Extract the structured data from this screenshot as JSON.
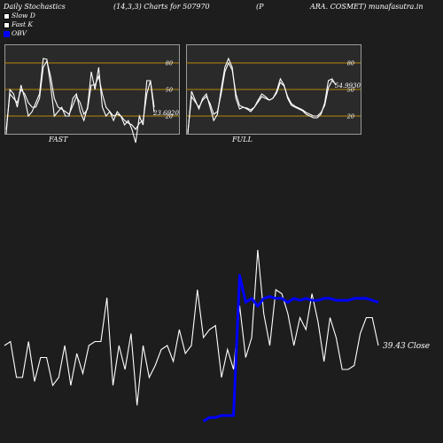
{
  "header": {
    "title": "Daily Stochastics",
    "params": "(14,3,3) Charts for 507970",
    "company_left": "(P",
    "company_right": "ARA. COSMET) munafasutra.in"
  },
  "legend": [
    {
      "label": "Slow  D",
      "color": "#ffffff",
      "border": "#000000"
    },
    {
      "label": "Fast K",
      "color": "#ffffff",
      "border": "#000000"
    },
    {
      "label": "OBV",
      "color": "#0000ff",
      "border": "#0000ff"
    }
  ],
  "colors": {
    "background": "#1d1d1d",
    "panel": "#2a2a2a",
    "ref_line": "#b8860b",
    "obv": "#0000ff",
    "price": "#ffffff"
  },
  "chart_data": [
    {
      "type": "line",
      "name": "stochastics-fast",
      "panel_label": "FAST",
      "ylim": [
        0,
        100
      ],
      "yticks": [
        80,
        50,
        20
      ],
      "ref_lines": [
        80,
        50,
        20
      ],
      "last_value_label": "23.6920",
      "series": [
        {
          "name": "Fast K",
          "values": [
            0,
            50,
            45,
            30,
            55,
            40,
            20,
            25,
            35,
            45,
            85,
            84,
            55,
            20,
            25,
            30,
            20,
            20,
            40,
            45,
            25,
            15,
            30,
            70,
            50,
            75,
            30,
            20,
            25,
            15,
            25,
            20,
            10,
            15,
            5,
            -10,
            20,
            10,
            60,
            60,
            24
          ]
        },
        {
          "name": "Slow  D",
          "values": [
            5,
            45,
            40,
            35,
            50,
            45,
            35,
            30,
            30,
            40,
            75,
            82,
            65,
            40,
            30,
            28,
            25,
            22,
            32,
            42,
            35,
            22,
            28,
            55,
            55,
            65,
            45,
            30,
            25,
            20,
            22,
            20,
            15,
            12,
            10,
            5,
            12,
            15,
            45,
            60,
            30
          ]
        }
      ]
    },
    {
      "type": "line",
      "name": "stochastics-full",
      "panel_label": "FULL",
      "ylim": [
        0,
        100
      ],
      "yticks": [
        80,
        50,
        20
      ],
      "ref_lines": [
        80,
        50,
        20
      ],
      "last_value_label": "54.9930",
      "series": [
        {
          "name": "Fast K",
          "values": [
            0,
            48,
            38,
            28,
            40,
            45,
            30,
            15,
            22,
            50,
            75,
            85,
            75,
            40,
            28,
            30,
            28,
            25,
            30,
            38,
            45,
            42,
            38,
            40,
            48,
            62,
            55,
            40,
            32,
            30,
            28,
            26,
            22,
            20,
            18,
            18,
            22,
            35,
            60,
            62,
            55
          ]
        },
        {
          "name": "Slow  D",
          "values": [
            2,
            42,
            36,
            30,
            38,
            42,
            34,
            22,
            25,
            45,
            70,
            80,
            72,
            45,
            32,
            30,
            29,
            27,
            30,
            36,
            42,
            40,
            38,
            40,
            46,
            58,
            54,
            42,
            34,
            31,
            29,
            27,
            24,
            22,
            20,
            20,
            24,
            32,
            52,
            60,
            56
          ]
        }
      ]
    },
    {
      "type": "line",
      "name": "price-obv",
      "last_value_label": "39.43",
      "close_label": "Close",
      "series": [
        {
          "name": "Price",
          "values": [
            50,
            51,
            42,
            42,
            51,
            41,
            47,
            47,
            40,
            42,
            50,
            40,
            48,
            43,
            50,
            51,
            51,
            62,
            40,
            50,
            44,
            53,
            35,
            50,
            42,
            45,
            49,
            50,
            46,
            54,
            48,
            50,
            64,
            52,
            54,
            55,
            42,
            49,
            44,
            60,
            47,
            52,
            74,
            58,
            50,
            64,
            63,
            58,
            50,
            57,
            54,
            63,
            56,
            46,
            57,
            52,
            44,
            44,
            45,
            53,
            57,
            57,
            50
          ]
        },
        {
          "name": "OBV",
          "values": [
            null,
            null,
            null,
            null,
            null,
            null,
            null,
            null,
            null,
            null,
            null,
            null,
            null,
            null,
            null,
            null,
            null,
            null,
            null,
            null,
            null,
            null,
            null,
            null,
            null,
            null,
            null,
            null,
            null,
            null,
            null,
            null,
            null,
            -11,
            -9,
            -9,
            -8,
            -8,
            -8,
            65,
            51,
            53,
            49,
            53,
            54,
            53,
            53,
            51,
            53,
            52,
            53,
            52,
            52,
            53,
            53,
            52,
            52,
            52,
            53,
            53,
            53,
            52,
            51
          ]
        }
      ]
    }
  ]
}
